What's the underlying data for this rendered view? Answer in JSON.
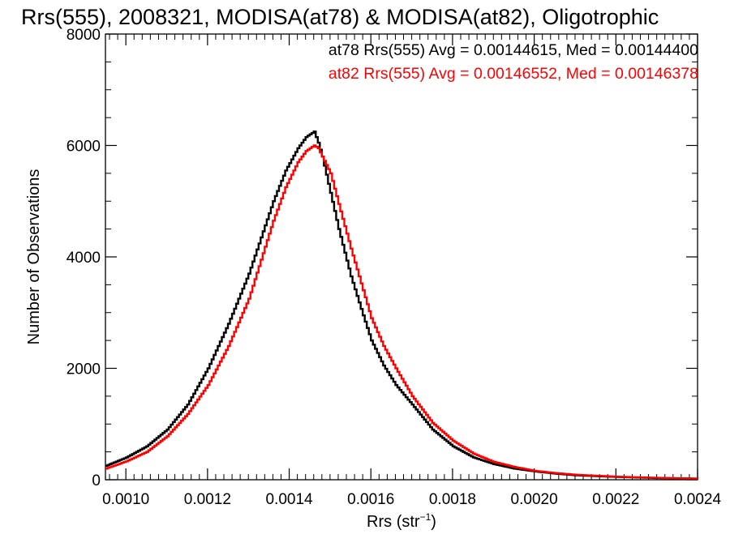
{
  "chart_data": {
    "type": "line",
    "step": true,
    "title": "Rrs(555), 2008321, MODISA(at78) & MODISA(at82), Oligotrophic",
    "xlabel": "Rrs (str",
    "xlabel_sup": "−1",
    "xlabel_suffix": ")",
    "ylabel": "Number of Observations",
    "xlim": [
      0.00095,
      0.0024
    ],
    "ylim": [
      0,
      8000
    ],
    "xticks": [
      "0.0010",
      "0.0012",
      "0.0014",
      "0.0016",
      "0.0018",
      "0.0020",
      "0.0022",
      "0.0024"
    ],
    "yticks": [
      "0",
      "2000",
      "4000",
      "6000",
      "8000"
    ],
    "legend_position": "top-right",
    "colors": {
      "at78": "#000000",
      "at82": "#ff0000",
      "axes": "#000000"
    },
    "annotations": [
      {
        "id": "at78",
        "text": "at78 Rrs(555) Avg = 0.00144615, Med = 0.00144400",
        "color": "#000000"
      },
      {
        "id": "at82",
        "text": "at82 Rrs(555) Avg = 0.00146552, Med = 0.00146378",
        "color": "#ff0000"
      }
    ],
    "series": [
      {
        "name": "at78",
        "color": "#000000",
        "x": [
          0.00095,
          0.001,
          0.00105,
          0.0011,
          0.00115,
          0.0012,
          0.00125,
          0.0013,
          0.00133,
          0.00136,
          0.00139,
          0.00142,
          0.00144,
          0.00146,
          0.00147,
          0.00148,
          0.0015,
          0.00152,
          0.00155,
          0.00158,
          0.0016,
          0.00163,
          0.00166,
          0.0017,
          0.00175,
          0.0018,
          0.00185,
          0.0019,
          0.00195,
          0.002,
          0.00205,
          0.0021,
          0.0022,
          0.0023,
          0.0024
        ],
        "y": [
          250,
          400,
          600,
          900,
          1350,
          2000,
          2800,
          3700,
          4350,
          5000,
          5550,
          5950,
          6150,
          6250,
          6050,
          5800,
          5150,
          4500,
          3650,
          2950,
          2500,
          2050,
          1700,
          1350,
          900,
          600,
          400,
          280,
          200,
          150,
          110,
          80,
          50,
          30,
          20
        ]
      },
      {
        "name": "at82",
        "color": "#ff0000",
        "x": [
          0.00095,
          0.001,
          0.00105,
          0.0011,
          0.00115,
          0.0012,
          0.00125,
          0.0013,
          0.00133,
          0.00136,
          0.00139,
          0.00142,
          0.00144,
          0.00146,
          0.00147,
          0.00148,
          0.0015,
          0.00152,
          0.00155,
          0.00158,
          0.0016,
          0.00163,
          0.00166,
          0.0017,
          0.00175,
          0.0018,
          0.00185,
          0.0019,
          0.00195,
          0.002,
          0.00205,
          0.0021,
          0.0022,
          0.0023,
          0.0024
        ],
        "y": [
          200,
          330,
          500,
          780,
          1180,
          1700,
          2400,
          3250,
          3950,
          4650,
          5250,
          5700,
          5900,
          6000,
          5950,
          5800,
          5500,
          4950,
          4150,
          3400,
          2900,
          2400,
          2000,
          1500,
          1020,
          700,
          470,
          320,
          230,
          160,
          120,
          90,
          55,
          35,
          20
        ]
      }
    ]
  }
}
